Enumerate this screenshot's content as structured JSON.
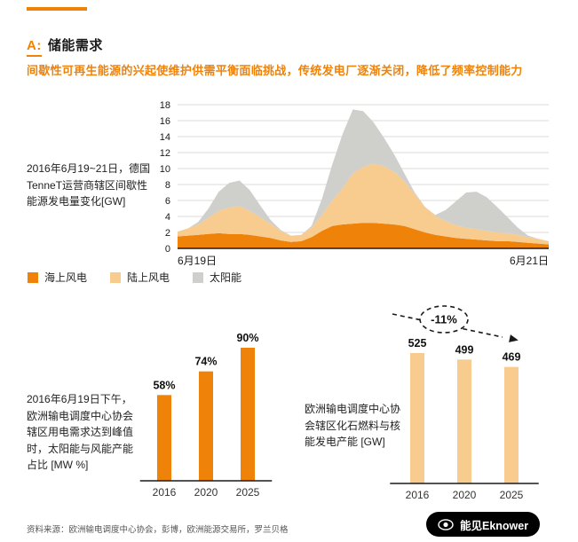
{
  "colors": {
    "orange": "#EF830A",
    "light": "#F8CC8F",
    "gray": "#CFCFCC",
    "grid": "#DBDBD9",
    "axis": "#1a1a1a"
  },
  "header": {
    "section_letter": "A:",
    "title": "储能需求"
  },
  "subtitle": "间歇性可再生能源的兴起使维护供需平衡面临挑战，传统发电厂逐渐关闭，降低了频率控制能力",
  "legend": [
    {
      "label": "海上风电",
      "color": "#EF830A"
    },
    {
      "label": "陆上风电",
      "color": "#F8CC8F"
    },
    {
      "label": "太阳能",
      "color": "#CFCFCC"
    }
  ],
  "chart_data": [
    {
      "type": "area",
      "stacked": true,
      "title": "2016年6月19~21日，德国TenneT运营商辖区间歇性能源发电量变化[GW]",
      "ylim": [
        0,
        18
      ],
      "ytick_step": 2,
      "x_unit": "小时",
      "x_axis_labels": [
        "6月19日",
        "6月21日"
      ],
      "x": [
        0,
        2,
        4,
        6,
        8,
        10,
        12,
        14,
        16,
        18,
        20,
        22,
        24,
        26,
        28,
        30,
        32,
        34,
        36,
        38,
        40,
        42,
        44,
        46,
        48,
        50,
        52,
        54,
        56,
        58,
        60,
        62,
        64,
        66,
        68,
        70,
        72
      ],
      "series": [
        {
          "name": "海上风电",
          "color": "#EF830A",
          "values": [
            1.5,
            1.6,
            1.7,
            1.8,
            1.9,
            1.8,
            1.8,
            1.7,
            1.5,
            1.3,
            1.0,
            0.8,
            0.9,
            1.4,
            2.2,
            2.8,
            3.0,
            3.1,
            3.2,
            3.2,
            3.1,
            3.0,
            2.8,
            2.4,
            2.0,
            1.7,
            1.5,
            1.3,
            1.2,
            1.1,
            1.0,
            0.9,
            0.9,
            0.8,
            0.7,
            0.6,
            0.5
          ]
        },
        {
          "name": "陆上风电",
          "color": "#F8CC8F",
          "values": [
            0.6,
            0.9,
            1.3,
            2.0,
            2.8,
            3.3,
            3.5,
            3.0,
            2.4,
            1.8,
            1.2,
            0.8,
            0.8,
            1.2,
            2.0,
            3.2,
            4.5,
            6.3,
            7.0,
            7.4,
            7.2,
            6.6,
            5.6,
            4.4,
            3.2,
            2.4,
            1.9,
            1.6,
            1.4,
            1.3,
            1.2,
            1.1,
            1.0,
            0.9,
            0.7,
            0.6,
            0.4
          ]
        },
        {
          "name": "太阳能",
          "color": "#CFCFCC",
          "values": [
            0,
            0,
            0.3,
            1.2,
            2.4,
            3.1,
            3.2,
            2.6,
            1.5,
            0.5,
            0.1,
            0,
            0,
            0.2,
            2.0,
            4.5,
            6.8,
            8.0,
            7.0,
            5.2,
            3.6,
            2.2,
            1.0,
            0.2,
            0,
            0.1,
            1.4,
            3.0,
            4.4,
            4.7,
            4.2,
            3.2,
            2.0,
            0.9,
            0.2,
            0,
            0
          ]
        }
      ]
    },
    {
      "type": "bar",
      "title": "2016年6月19日下午，欧洲输电调度中心协会辖区用电需求达到峰值时，太阳能与风能产能占比 [MW %]",
      "categories": [
        "2016",
        "2020",
        "2025"
      ],
      "values": [
        58,
        74,
        90
      ],
      "value_labels": [
        "58%",
        "74%",
        "90%"
      ],
      "color": "#EF830A"
    },
    {
      "type": "bar",
      "title": "欧洲输电调度中心协会辖区化石燃料与核能发电产能 [GW]",
      "categories": [
        "2016",
        "2020",
        "2025"
      ],
      "values": [
        525,
        499,
        469
      ],
      "value_labels": [
        "525",
        "499",
        "469"
      ],
      "color": "#F8CC8F",
      "annotation": "-11%"
    }
  ],
  "footer": {
    "source": "资料来源：欧洲输电调度中心协会，彭博，欧洲能源交易所，罗兰贝格",
    "badge": "能见Eknower"
  }
}
